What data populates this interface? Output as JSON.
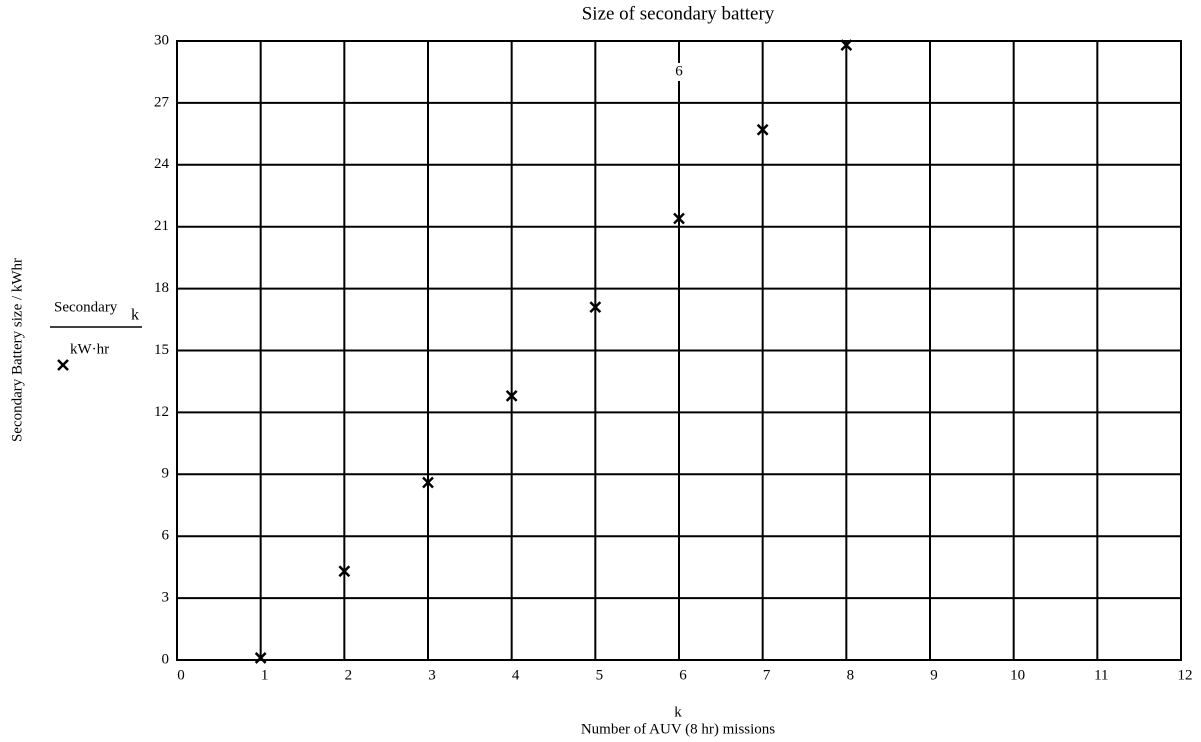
{
  "chart_data": {
    "type": "scatter",
    "title": "Size of secondary battery",
    "ylabel": "Secondary Battery size / kWhr",
    "xlabel_var": "k",
    "xlabel": "Number of AUV (8 hr) missions",
    "y_expression": {
      "numerator": "Secondary",
      "subscript": "k",
      "denominator": "kW·hr"
    },
    "annotation": "6",
    "x": [
      1,
      2,
      3,
      4,
      5,
      6,
      7,
      8
    ],
    "series": [
      {
        "name": "Secondary",
        "color": "#000000",
        "values": [
          0.1,
          4.3,
          8.6,
          12.8,
          17.1,
          21.4,
          25.7,
          29.8
        ]
      }
    ],
    "xlim": [
      0,
      12
    ],
    "xticks": [
      0,
      1,
      2,
      3,
      4,
      5,
      6,
      7,
      8,
      9,
      10,
      11,
      12
    ],
    "ylim": [
      0,
      30
    ],
    "yticks": [
      0,
      3,
      6,
      9,
      12,
      15,
      18,
      21,
      24,
      27,
      30
    ],
    "grid": true
  }
}
